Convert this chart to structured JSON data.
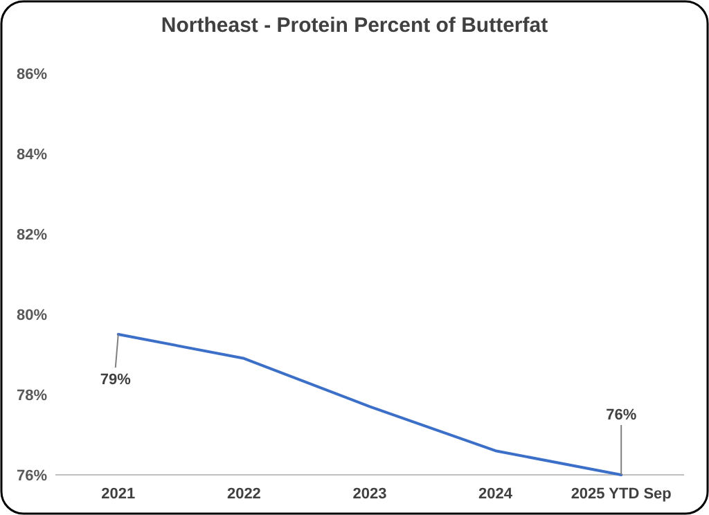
{
  "chart_data": {
    "type": "line",
    "title": "Northeast - Protein Percent of Butterfat",
    "categories": [
      "2021",
      "2022",
      "2023",
      "2024",
      "2025 YTD Sep"
    ],
    "series": [
      {
        "color": "#3c6fc8",
        "values": [
          79.5,
          78.9,
          77.7,
          76.6,
          76.0
        ],
        "value_labels": [
          "79%",
          null,
          null,
          null,
          "76%"
        ]
      }
    ],
    "ylim": [
      76,
      86
    ],
    "yticks": [
      {
        "value": 76,
        "label": "76%"
      },
      {
        "value": 78,
        "label": "78%"
      },
      {
        "value": 80,
        "label": "80%"
      },
      {
        "value": 82,
        "label": "82%"
      },
      {
        "value": 84,
        "label": "84%"
      },
      {
        "value": 86,
        "label": "86%"
      }
    ],
    "marker": "none",
    "line_style": "solid"
  }
}
